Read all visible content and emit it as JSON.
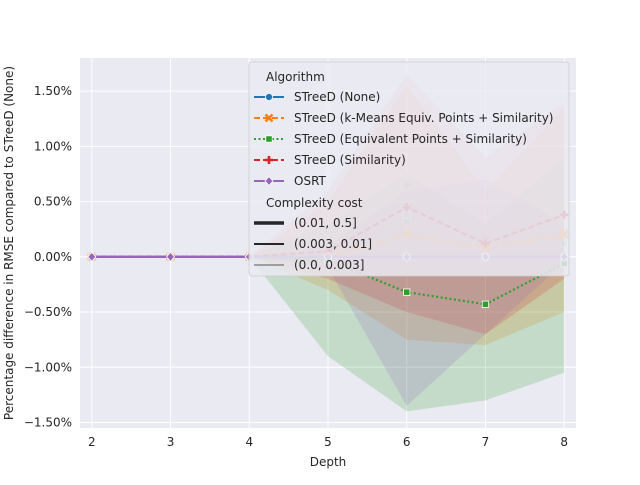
{
  "chart_data": {
    "type": "line",
    "xlabel": "Depth",
    "ylabel": "Percentage difference in RMSE compared to STreeD (None)",
    "x": [
      2,
      3,
      4,
      5,
      6,
      7,
      8
    ],
    "xlim": [
      1.85,
      8.15
    ],
    "ylim": [
      -1.55,
      1.8
    ],
    "yticks": [
      -1.5,
      -1.0,
      -0.5,
      0.0,
      0.5,
      1.0,
      1.5
    ],
    "ytick_labels": [
      "−1.50%",
      "−1.00%",
      "−0.50%",
      "0.00%",
      "0.50%",
      "1.00%",
      "1.50%"
    ],
    "xtick_labels": [
      "2",
      "3",
      "4",
      "5",
      "6",
      "7",
      "8"
    ],
    "grid": true,
    "background": "#eaeaf2",
    "legend_position": "upper-right",
    "legend": {
      "title": "Algorithm",
      "size_title": "Complexity cost",
      "size_entries": [
        {
          "label": "(0.01, 0.5]",
          "width": 3.5
        },
        {
          "label": "(0.003, 0.01]",
          "width": 2
        },
        {
          "label": "(0.0, 0.003]",
          "width": 0.8
        }
      ]
    },
    "series": [
      {
        "name": "STreeD (None)",
        "color": "#1f77b4",
        "dash": "solid",
        "marker": "circle",
        "values": [
          0.0,
          0.0,
          0.0,
          0.0,
          0.0,
          0.0,
          0.0
        ],
        "lower": [
          0.0,
          0.0,
          0.0,
          0.0,
          0.0,
          0.0,
          0.0
        ],
        "upper": [
          0.0,
          0.0,
          0.0,
          0.0,
          0.0,
          0.0,
          0.0
        ],
        "faint_points": [
          [
            6,
            0.0
          ],
          [
            7,
            0.0
          ],
          [
            8,
            0.0
          ]
        ]
      },
      {
        "name": "STreeD (k-Means Equiv. Points + Similarity)",
        "color": "#ff7f0e",
        "dash": "dashed",
        "marker": "x",
        "values": [
          0.0,
          0.0,
          0.0,
          0.0,
          0.2,
          0.08,
          0.2
        ],
        "lower": [
          0.0,
          0.0,
          0.0,
          -0.3,
          -0.75,
          -0.8,
          -0.5
        ],
        "upper": [
          0.0,
          0.0,
          0.0,
          0.5,
          1.55,
          0.6,
          1.35
        ],
        "faint_points": [
          [
            6,
            0.28
          ],
          [
            6,
            0.2
          ],
          [
            7,
            0.08
          ],
          [
            8,
            0.22
          ]
        ]
      },
      {
        "name": "STreeD (Equivalent Points + Similarity)",
        "color": "#2ca02c",
        "dash": "dotted",
        "marker": "square",
        "values": [
          0.0,
          0.0,
          0.0,
          -0.03,
          -0.32,
          -0.43,
          -0.06
        ],
        "lower": [
          0.0,
          0.0,
          0.0,
          -0.9,
          -1.4,
          -1.3,
          -1.05
        ],
        "upper": [
          0.0,
          0.0,
          0.0,
          0.3,
          0.75,
          0.3,
          0.9
        ],
        "faint_points": [
          [
            6,
            0.38
          ],
          [
            6,
            0.32
          ],
          [
            8,
            0.12
          ]
        ]
      },
      {
        "name": "STreeD (Similarity)",
        "color": "#d62728",
        "dash": "dashed",
        "marker": "plus",
        "values": [
          0.0,
          0.0,
          0.0,
          0.05,
          0.45,
          0.12,
          0.38
        ],
        "lower": [
          0.0,
          0.0,
          0.0,
          -0.2,
          -0.5,
          -0.7,
          -0.2
        ],
        "upper": [
          0.0,
          0.0,
          0.0,
          0.6,
          1.65,
          0.9,
          1.4
        ],
        "faint_points": [
          [
            6,
            0.65
          ],
          [
            7,
            0.17
          ],
          [
            8,
            0.38
          ]
        ]
      },
      {
        "name": "OSRT",
        "color": "#9467bd",
        "dash": "solid",
        "marker": "diamond",
        "values": [
          0.0,
          0.0,
          0.0,
          0.0,
          0.0,
          0.0,
          0.0
        ],
        "lower": [
          0.0,
          0.0,
          0.0,
          -0.1,
          -1.35,
          -0.7,
          -0.05
        ],
        "upper": [
          0.0,
          0.0,
          0.0,
          0.1,
          0.6,
          0.7,
          0.3
        ],
        "faint_points": [
          [
            6,
            0.0
          ],
          [
            7,
            0.0
          ],
          [
            8,
            -0.02
          ]
        ]
      }
    ]
  }
}
